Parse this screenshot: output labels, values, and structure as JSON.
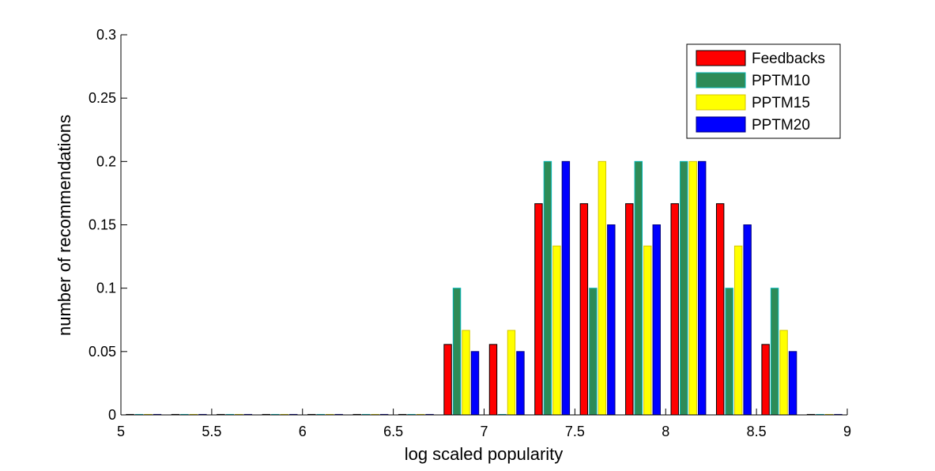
{
  "chart_data": {
    "type": "bar",
    "title": "",
    "xlabel": "log scaled popularity",
    "ylabel": "number of recommendations",
    "xlim": [
      5,
      9
    ],
    "ylim": [
      0,
      0.3
    ],
    "xticks": [
      "5",
      "5.5",
      "6",
      "6.5",
      "7",
      "7.5",
      "8",
      "8.5",
      "9"
    ],
    "yticks": [
      "0",
      "0.05",
      "0.1",
      "0.15",
      "0.2",
      "0.25",
      "0.3"
    ],
    "grid": false,
    "legend_position": "top-right",
    "bin_centers": [
      5.125,
      5.375,
      5.625,
      5.875,
      6.125,
      6.375,
      6.625,
      6.875,
      7.125,
      7.375,
      7.625,
      7.875,
      8.125,
      8.375,
      8.625,
      8.875
    ],
    "series": [
      {
        "name": "Feedbacks",
        "color": "#ff0000",
        "edge": "#000000",
        "values": [
          0,
          0,
          0,
          0,
          0,
          0,
          0,
          0.0556,
          0.0556,
          0.1667,
          0.1667,
          0.1667,
          0.1667,
          0.1667,
          0.0556,
          0
        ]
      },
      {
        "name": "PPTM10",
        "color": "#2e8b57",
        "edge": "#00b3b3",
        "values": [
          0,
          0,
          0,
          0,
          0,
          0,
          0,
          0.1,
          0,
          0.2,
          0.1,
          0.2,
          0.2,
          0.1,
          0.1,
          0
        ]
      },
      {
        "name": "PPTM15",
        "color": "#ffff00",
        "edge": "#d4c600",
        "values": [
          0,
          0,
          0,
          0,
          0,
          0,
          0,
          0.0667,
          0.0667,
          0.1333,
          0.2,
          0.1333,
          0.2,
          0.1333,
          0.0667,
          0
        ]
      },
      {
        "name": "PPTM20",
        "color": "#0000ff",
        "edge": "#000080",
        "values": [
          0,
          0,
          0,
          0,
          0,
          0,
          0,
          0.05,
          0.05,
          0.2,
          0.15,
          0.15,
          0.2,
          0.15,
          0.05,
          0
        ]
      }
    ]
  }
}
